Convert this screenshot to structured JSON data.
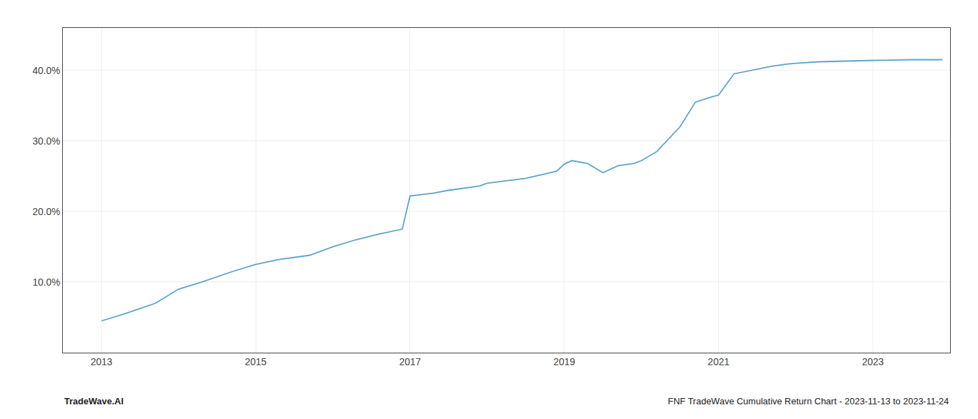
{
  "chart_data": {
    "type": "line",
    "x": [
      2013.0,
      2013.3,
      2013.7,
      2014.0,
      2014.3,
      2014.7,
      2015.0,
      2015.3,
      2015.7,
      2016.0,
      2016.3,
      2016.6,
      2016.9,
      2017.0,
      2017.15,
      2017.3,
      2017.5,
      2017.7,
      2017.9,
      2018.0,
      2018.2,
      2018.5,
      2018.7,
      2018.9,
      2019.0,
      2019.1,
      2019.3,
      2019.5,
      2019.7,
      2019.9,
      2020.0,
      2020.2,
      2020.5,
      2020.7,
      2020.9,
      2021.0,
      2021.2,
      2021.5,
      2021.7,
      2021.9,
      2022.0,
      2022.3,
      2022.6,
      2022.9,
      2023.0,
      2023.5,
      2023.9
    ],
    "values": [
      4.5,
      5.5,
      7.0,
      9.0,
      10.0,
      11.5,
      12.5,
      13.2,
      13.8,
      15.0,
      16.0,
      16.8,
      17.5,
      22.2,
      22.4,
      22.6,
      23.0,
      23.3,
      23.6,
      24.0,
      24.3,
      24.7,
      25.2,
      25.7,
      26.7,
      27.2,
      26.8,
      25.5,
      26.5,
      26.8,
      27.2,
      28.5,
      32.0,
      35.5,
      36.2,
      36.5,
      39.5,
      40.2,
      40.6,
      40.9,
      41.0,
      41.2,
      41.3,
      41.4,
      41.4,
      41.5,
      41.5
    ],
    "color": "#5ba3c9",
    "xlim": [
      2012.5,
      2024.0
    ],
    "ylim": [
      0,
      46
    ],
    "xticks": [
      2013,
      2015,
      2017,
      2019,
      2021,
      2023
    ],
    "yticks": [
      {
        "value": 10.0,
        "label": "10.0%"
      },
      {
        "value": 20.0,
        "label": "20.0%"
      },
      {
        "value": 30.0,
        "label": "30.0%"
      },
      {
        "value": 40.0,
        "label": "40.0%"
      }
    ],
    "grid": true,
    "annotations": [
      "TradeWave.AI",
      "FNF TradeWave Cumulative Return Chart - 2023-11-13 to 2023-11-24"
    ]
  }
}
